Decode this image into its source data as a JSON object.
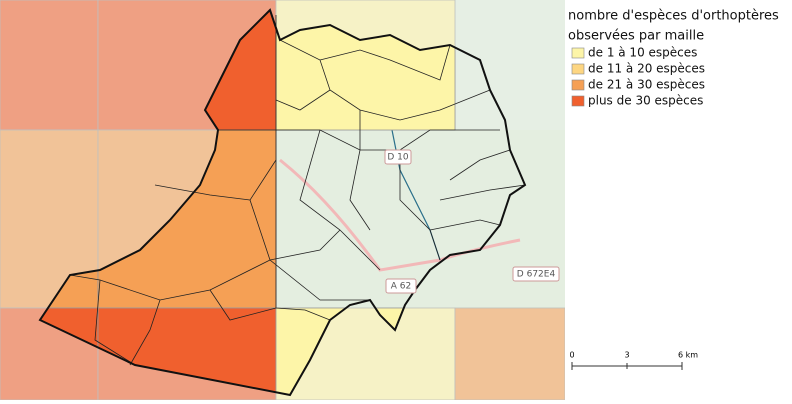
{
  "legend": {
    "title": [
      "nombre d'espèces d'orthoptères",
      "observées par maille"
    ],
    "items": [
      {
        "label": "de 1 à 10 espèces",
        "color": "#fdf5a8"
      },
      {
        "label": "de 11 à 20 espèces",
        "color": "#fdd682"
      },
      {
        "label": "de 21 à 30 espèces",
        "color": "#f5a055"
      },
      {
        "label": "plus de 30 espèces",
        "color": "#f0602e"
      }
    ]
  },
  "map_labels": [
    "D 10",
    "A 62",
    "D 672E4"
  ],
  "scale_bar": {
    "labels": [
      "0",
      "3",
      "6 km"
    ]
  }
}
